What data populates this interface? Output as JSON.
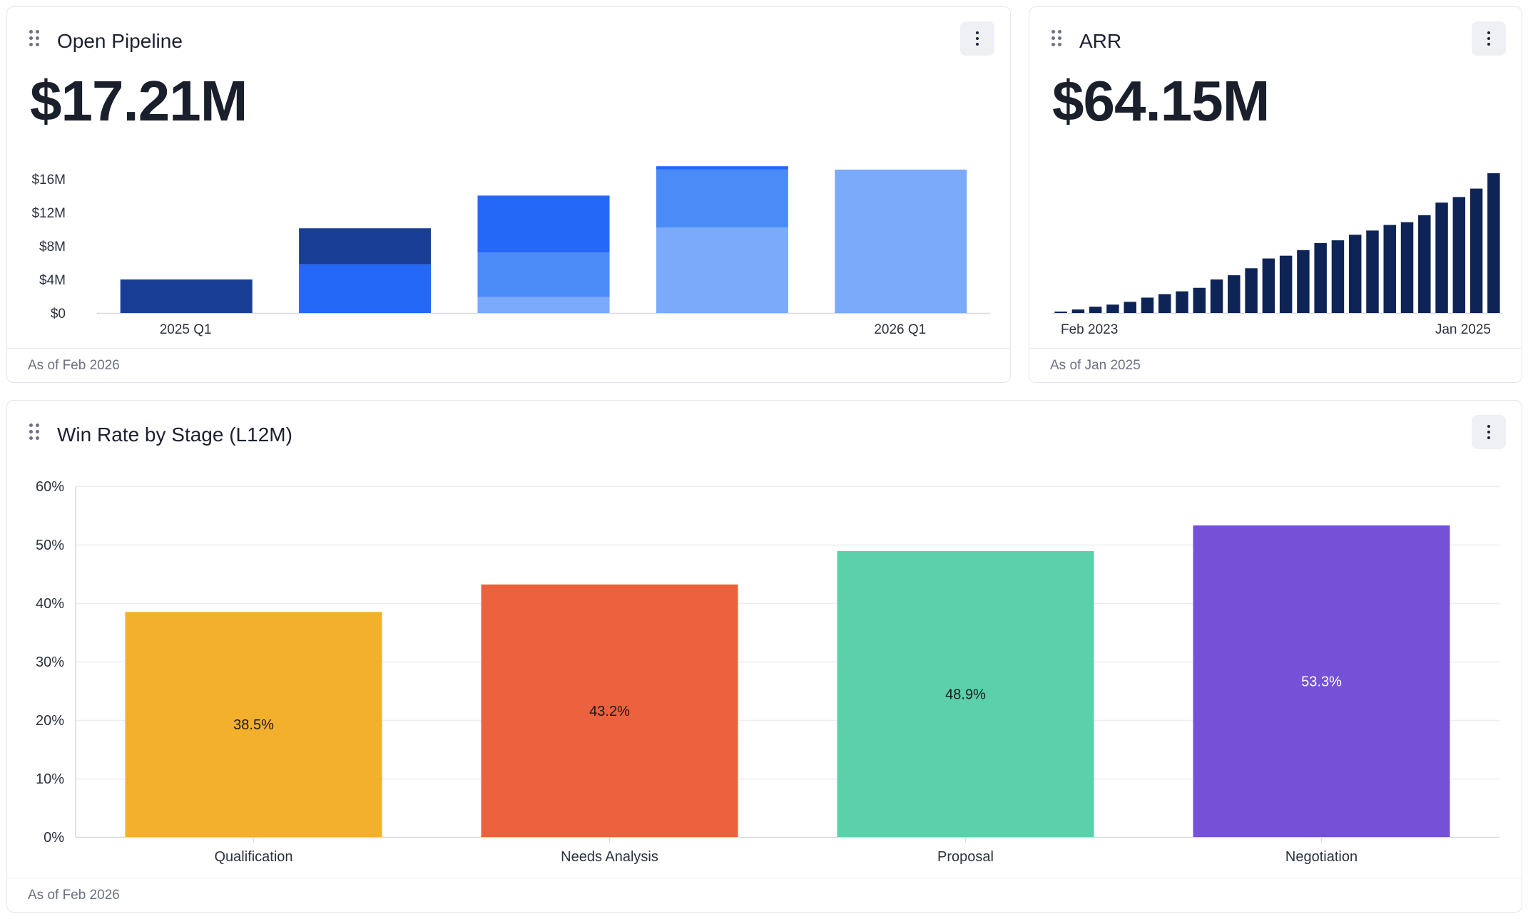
{
  "pipeline": {
    "title": "Open Pipeline",
    "value": "$17.21M",
    "footer": "As of Feb 2026",
    "chart_data": {
      "type": "bar",
      "stacked": true,
      "y_ticks": [
        "$0",
        "$4M",
        "$8M",
        "$12M",
        "$16M"
      ],
      "ylim": [
        0,
        17.6
      ],
      "x_tick_labels": [
        "2025 Q1",
        "",
        "",
        "",
        "2026 Q1"
      ],
      "segment_colors": [
        "#183f95",
        "#2468f7",
        "#4b8bf8",
        "#7aaaf9"
      ],
      "stacks": [
        [
          {
            "value": 4.0,
            "color": "#183f95"
          }
        ],
        [
          {
            "value": 5.8,
            "color": "#2468f7"
          },
          {
            "value": 4.3,
            "color": "#183f95"
          }
        ],
        [
          {
            "value": 1.9,
            "color": "#7aaaf9"
          },
          {
            "value": 5.3,
            "color": "#4b8bf8"
          },
          {
            "value": 6.8,
            "color": "#2468f7"
          }
        ],
        [
          {
            "value": 10.2,
            "color": "#7aaaf9"
          },
          {
            "value": 6.9,
            "color": "#4b8bf8"
          },
          {
            "value": 0.4,
            "color": "#2468f7"
          }
        ],
        [
          {
            "value": 17.1,
            "color": "#7aaaf9"
          }
        ]
      ]
    }
  },
  "arr": {
    "title": "ARR",
    "value": "$64.15M",
    "footer": "As of Jan 2025",
    "chart_data": {
      "type": "bar",
      "x_tick_labels": [
        "Feb 2023",
        "Jan 2025"
      ],
      "color": "#0e2456",
      "ylim": [
        0,
        100
      ],
      "values": [
        1,
        2.5,
        4.5,
        6,
        8,
        11,
        13.5,
        15.5,
        18,
        24,
        27,
        32,
        39,
        41,
        45,
        50,
        52,
        56,
        59,
        63,
        65,
        70,
        79,
        83,
        89,
        100
      ]
    }
  },
  "winrate": {
    "title": "Win Rate by Stage (L12M)",
    "footer": "As of Feb 2026",
    "chart_data": {
      "type": "bar",
      "categories": [
        "Qualification",
        "Needs Analysis",
        "Proposal",
        "Negotiation"
      ],
      "values": [
        38.5,
        43.2,
        48.9,
        53.3
      ],
      "data_labels": [
        "38.5%",
        "43.2%",
        "48.9%",
        "53.3%"
      ],
      "colors": [
        "#f3b02c",
        "#ec613e",
        "#5ccfab",
        "#7451d6"
      ],
      "label_colors": [
        "#1a1a1a",
        "#1a1a1a",
        "#1a1a1a",
        "#ffffff"
      ],
      "y_ticks": [
        "0%",
        "10%",
        "20%",
        "30%",
        "40%",
        "50%",
        "60%"
      ],
      "ylim": [
        0,
        60
      ],
      "grid": true
    }
  }
}
